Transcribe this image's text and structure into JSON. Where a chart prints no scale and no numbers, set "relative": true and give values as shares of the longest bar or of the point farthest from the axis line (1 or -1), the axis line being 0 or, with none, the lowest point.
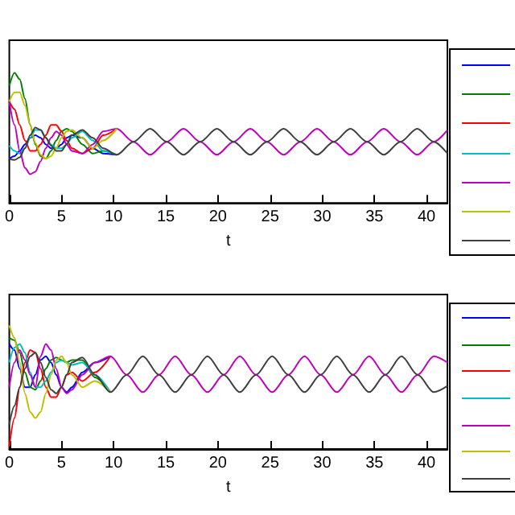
{
  "chart_data": [
    {
      "type": "line",
      "xlabel": "t",
      "relative": true,
      "xlim": [
        0,
        42
      ],
      "xticks": [
        0,
        5,
        10,
        15,
        20,
        25,
        30,
        35,
        40
      ],
      "x": [
        0,
        0.5,
        1,
        1.5,
        2,
        2.5,
        3,
        3.5,
        4,
        4.5,
        5,
        5.5,
        6,
        7,
        8,
        9,
        10.3,
        11.9,
        13.5,
        15.1,
        16.7,
        18.3,
        19.9,
        21.5,
        23.1,
        24.7,
        26.3,
        27.9,
        29.5,
        31.1,
        32.7,
        34.3,
        35.9,
        37.5,
        39.1,
        40.7,
        42
      ],
      "series": [
        {
          "color": "#0000ff",
          "values": [
            0.34,
            0.36,
            0.4,
            0.45,
            0.5,
            0.52,
            0.5,
            0.45,
            0.42,
            0.42,
            0.45,
            0.5,
            0.52,
            0.5,
            0.42,
            0.38,
            0.37,
            null,
            null,
            null,
            null,
            null,
            null,
            null,
            null,
            null,
            null,
            null,
            null,
            null,
            null,
            null,
            null,
            null,
            null,
            null,
            null
          ]
        },
        {
          "color": "#008000",
          "values": [
            0.9,
            1.0,
            0.95,
            0.8,
            0.6,
            0.45,
            0.36,
            0.34,
            0.4,
            0.48,
            0.55,
            0.57,
            0.55,
            0.45,
            0.38,
            0.4,
            0.37,
            null,
            null,
            null,
            null,
            null,
            null,
            null,
            null,
            null,
            null,
            null,
            null,
            null,
            null,
            null,
            null,
            null,
            null,
            null,
            null
          ]
        },
        {
          "color": "#ff0000",
          "values": [
            0.78,
            0.72,
            0.6,
            0.48,
            0.4,
            0.4,
            0.45,
            0.52,
            0.6,
            0.6,
            0.55,
            0.48,
            0.42,
            0.38,
            0.42,
            0.52,
            0.57,
            null,
            null,
            null,
            null,
            null,
            null,
            null,
            null,
            null,
            null,
            null,
            null,
            null,
            null,
            null,
            null,
            null,
            null,
            null,
            null
          ]
        },
        {
          "color": "#00bfbf",
          "values": [
            0.44,
            0.4,
            0.38,
            0.42,
            0.5,
            0.56,
            0.56,
            0.5,
            0.45,
            0.42,
            0.42,
            0.45,
            0.5,
            0.55,
            0.48,
            0.4,
            0.37,
            null,
            null,
            null,
            null,
            null,
            null,
            null,
            null,
            null,
            null,
            null,
            null,
            null,
            null,
            null,
            null,
            null,
            null,
            null,
            null
          ]
        },
        {
          "color": "#bf00bf",
          "values": [
            0.78,
            0.6,
            0.4,
            0.27,
            0.22,
            0.24,
            0.32,
            0.42,
            0.5,
            0.55,
            0.52,
            0.45,
            0.4,
            0.38,
            0.45,
            0.55,
            0.57,
            0.47,
            0.37,
            0.47,
            0.57,
            0.47,
            0.37,
            0.47,
            0.57,
            0.47,
            0.37,
            0.47,
            0.57,
            0.47,
            0.37,
            0.47,
            0.57,
            0.47,
            0.37,
            0.47,
            0.56
          ]
        },
        {
          "color": "#bfbf00",
          "values": [
            0.78,
            0.85,
            0.85,
            0.75,
            0.6,
            0.46,
            0.37,
            0.34,
            0.36,
            0.42,
            0.5,
            0.55,
            0.56,
            0.5,
            0.42,
            0.48,
            0.57,
            null,
            null,
            null,
            null,
            null,
            null,
            null,
            null,
            null,
            null,
            null,
            null,
            null,
            null,
            null,
            null,
            null,
            null,
            null,
            null
          ]
        },
        {
          "color": "#404040",
          "values": [
            0.34,
            0.33,
            0.35,
            0.42,
            0.52,
            0.58,
            0.56,
            0.5,
            0.44,
            0.4,
            0.4,
            0.45,
            0.52,
            0.56,
            0.5,
            0.42,
            0.37,
            0.47,
            0.57,
            0.47,
            0.37,
            0.47,
            0.57,
            0.47,
            0.37,
            0.47,
            0.57,
            0.47,
            0.37,
            0.47,
            0.57,
            0.47,
            0.37,
            0.47,
            0.57,
            0.47,
            0.38
          ]
        }
      ]
    },
    {
      "type": "line",
      "xlabel": "t",
      "relative": true,
      "xlim": [
        0,
        42
      ],
      "xticks": [
        0,
        5,
        10,
        15,
        20,
        25,
        30,
        35,
        40
      ],
      "x": [
        0,
        0.5,
        1,
        1.5,
        2,
        2.5,
        3,
        3.5,
        4,
        4.5,
        5,
        5.5,
        6,
        7,
        8.2,
        9.7,
        11.25,
        12.8,
        14.35,
        15.9,
        17.45,
        19,
        20.55,
        22.1,
        23.65,
        25.2,
        26.75,
        28.3,
        29.85,
        31.4,
        32.95,
        34.5,
        36.05,
        37.6,
        39.15,
        40.7,
        42
      ],
      "series": [
        {
          "color": "#0000ff",
          "values": [
            0.85,
            0.8,
            0.65,
            0.5,
            0.5,
            0.6,
            0.72,
            0.75,
            0.7,
            0.6,
            0.5,
            0.46,
            0.5,
            0.62,
            0.7,
            0.75,
            null,
            null,
            null,
            null,
            null,
            null,
            null,
            null,
            null,
            null,
            null,
            null,
            null,
            null,
            null,
            null,
            null,
            null,
            null,
            null,
            null
          ]
        },
        {
          "color": "#008000",
          "values": [
            0.9,
            0.88,
            0.78,
            0.62,
            0.5,
            0.48,
            0.55,
            0.65,
            0.72,
            0.74,
            0.72,
            0.7,
            0.72,
            0.72,
            0.58,
            0.46,
            null,
            null,
            null,
            null,
            null,
            null,
            null,
            null,
            null,
            null,
            null,
            null,
            null,
            null,
            null,
            null,
            null,
            null,
            null,
            null,
            null
          ]
        },
        {
          "color": "#ff0000",
          "values": [
            0.02,
            0.25,
            0.5,
            0.7,
            0.8,
            0.78,
            0.65,
            0.5,
            0.42,
            0.42,
            0.5,
            0.6,
            0.62,
            0.55,
            0.62,
            0.75,
            null,
            null,
            null,
            null,
            null,
            null,
            null,
            null,
            null,
            null,
            null,
            null,
            null,
            null,
            null,
            null,
            null,
            null,
            null,
            null,
            null
          ]
        },
        {
          "color": "#00bfbf",
          "values": [
            0.7,
            0.82,
            0.85,
            0.78,
            0.62,
            0.5,
            0.5,
            0.55,
            0.62,
            0.7,
            0.72,
            0.7,
            0.68,
            0.7,
            0.6,
            0.46,
            null,
            null,
            null,
            null,
            null,
            null,
            null,
            null,
            null,
            null,
            null,
            null,
            null,
            null,
            null,
            null,
            null,
            null,
            null,
            null,
            null
          ]
        },
        {
          "color": "#bf00bf",
          "values": [
            0.5,
            0.7,
            0.8,
            0.72,
            0.6,
            0.5,
            0.75,
            0.85,
            0.8,
            0.65,
            0.5,
            0.45,
            0.48,
            0.6,
            0.7,
            0.75,
            0.6,
            0.46,
            0.6,
            0.75,
            0.6,
            0.46,
            0.6,
            0.75,
            0.6,
            0.46,
            0.6,
            0.75,
            0.6,
            0.46,
            0.6,
            0.75,
            0.6,
            0.46,
            0.6,
            0.75,
            0.7
          ]
        },
        {
          "color": "#bfbf00",
          "values": [
            1.0,
            0.9,
            0.7,
            0.45,
            0.3,
            0.25,
            0.3,
            0.45,
            0.6,
            0.72,
            0.75,
            0.7,
            0.6,
            0.5,
            0.55,
            0.46,
            null,
            null,
            null,
            null,
            null,
            null,
            null,
            null,
            null,
            null,
            null,
            null,
            null,
            null,
            null,
            null,
            null,
            null,
            null,
            null,
            null
          ]
        },
        {
          "color": "#404040",
          "values": [
            0.2,
            0.35,
            0.5,
            0.65,
            0.75,
            0.78,
            0.7,
            0.58,
            0.48,
            0.45,
            0.5,
            0.6,
            0.7,
            0.74,
            0.6,
            0.46,
            0.6,
            0.75,
            0.6,
            0.46,
            0.6,
            0.75,
            0.6,
            0.46,
            0.6,
            0.75,
            0.6,
            0.46,
            0.6,
            0.75,
            0.6,
            0.46,
            0.6,
            0.75,
            0.6,
            0.46,
            0.51
          ]
        }
      ]
    }
  ]
}
